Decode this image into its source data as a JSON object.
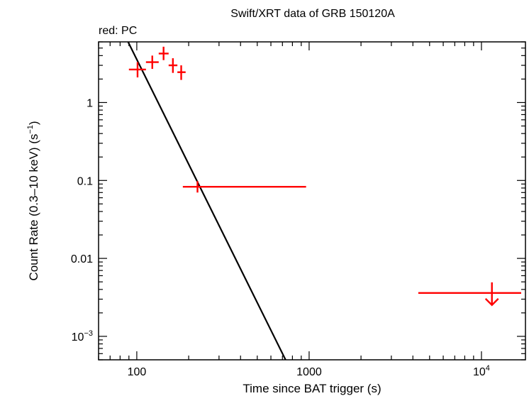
{
  "chart_data": {
    "type": "scatter",
    "title": "Swift/XRT data of GRB 150120A",
    "subtitle": "red: PC",
    "xlabel": "Time since BAT trigger (s)",
    "ylabel": "Count Rate (0.3–10 keV) (s",
    "ylabel_sup": "−1",
    "ylabel_end": ")",
    "x_scale": "log",
    "y_scale": "log",
    "xlim": [
      60,
      18000
    ],
    "ylim": [
      0.0005,
      6
    ],
    "x_ticks": [
      {
        "value": 100,
        "label": "100"
      },
      {
        "value": 1000,
        "label": "1000"
      },
      {
        "value": 10000,
        "label": "10",
        "sup": "4"
      }
    ],
    "y_ticks": [
      {
        "value": 1,
        "label": "1"
      },
      {
        "value": 0.1,
        "label": "0.1"
      },
      {
        "value": 0.01,
        "label": "0.01"
      },
      {
        "value": 0.001,
        "label": "10",
        "sup": "−3"
      }
    ],
    "series": [
      {
        "color": "#ff0000",
        "points": [
          {
            "x": 101,
            "xlo": 90,
            "xhi": 113,
            "y": 2.65,
            "ylo": 2.1,
            "yhi": 3.3
          },
          {
            "x": 123,
            "xlo": 113,
            "xhi": 134,
            "y": 3.3,
            "ylo": 2.7,
            "yhi": 4.0
          },
          {
            "x": 143,
            "xlo": 134,
            "xhi": 153,
            "y": 4.25,
            "ylo": 3.5,
            "yhi": 5.2
          },
          {
            "x": 162,
            "xlo": 153,
            "xhi": 172,
            "y": 3.0,
            "ylo": 2.4,
            "yhi": 3.7
          },
          {
            "x": 181,
            "xlo": 172,
            "xhi": 192,
            "y": 2.45,
            "ylo": 1.95,
            "yhi": 3.0
          },
          {
            "x": 225,
            "xlo": 185,
            "xhi": 960,
            "y": 0.083,
            "ylo": 0.07,
            "yhi": 0.098
          }
        ],
        "upper_limits": [
          {
            "x": 11500,
            "xlo": 4300,
            "xhi": 17000,
            "y": 0.0036
          }
        ]
      }
    ],
    "model_line": {
      "color": "#000000",
      "points": [
        {
          "x": 89,
          "y": 6
        },
        {
          "x": 730,
          "y": 0.0005
        }
      ]
    }
  }
}
